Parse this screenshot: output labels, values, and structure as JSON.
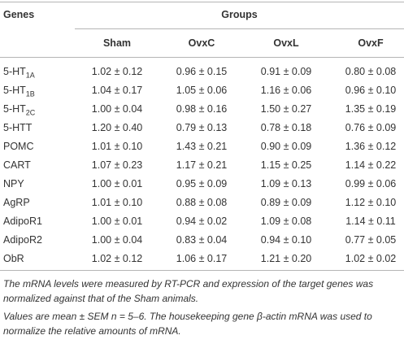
{
  "header": {
    "genes": "Genes",
    "groups": "Groups"
  },
  "columns": [
    "Sham",
    "OvxC",
    "OvxL",
    "OvxF"
  ],
  "rows": [
    {
      "gene": "5-HT",
      "gene_sub": "1A",
      "values": [
        "1.02 ± 0.12",
        "0.96 ± 0.15",
        "0.91 ± 0.09",
        "0.80 ± 0.08"
      ]
    },
    {
      "gene": "5-HT",
      "gene_sub": "1B",
      "values": [
        "1.04 ± 0.17",
        "1.05 ± 0.06",
        "1.16 ± 0.06",
        "0.96 ± 0.10"
      ]
    },
    {
      "gene": "5-HT",
      "gene_sub": "2C",
      "values": [
        "1.00 ± 0.04",
        "0.98 ± 0.16",
        "1.50 ± 0.27",
        "1.35 ± 0.19"
      ]
    },
    {
      "gene": "5-HTT",
      "values": [
        "1.20 ± 0.40",
        "0.79 ± 0.13",
        "0.78 ± 0.18",
        "0.76 ± 0.09"
      ]
    },
    {
      "gene": "POMC",
      "values": [
        "1.01 ± 0.10",
        "1.43 ± 0.21",
        "0.90 ± 0.09",
        "1.36 ± 0.12"
      ]
    },
    {
      "gene": "CART",
      "values": [
        "1.07 ± 0.23",
        "1.17 ± 0.21",
        "1.15 ± 0.25",
        "1.14 ± 0.22"
      ]
    },
    {
      "gene": "NPY",
      "values": [
        "1.00 ± 0.01",
        "0.95 ± 0.09",
        "1.09 ± 0.13",
        "0.99 ± 0.06"
      ]
    },
    {
      "gene": "AgRP",
      "values": [
        "1.01 ± 0.10",
        "0.88 ± 0.08",
        "0.89 ± 0.09",
        "1.12 ± 0.10"
      ]
    },
    {
      "gene": "AdipoR1",
      "values": [
        "1.00 ± 0.01",
        "0.94 ± 0.02",
        "1.09 ± 0.08",
        "1.14 ± 0.11"
      ]
    },
    {
      "gene": "AdipoR2",
      "values": [
        "1.00 ± 0.04",
        "0.83 ± 0.04",
        "0.94 ± 0.10",
        "0.77 ± 0.05"
      ]
    },
    {
      "gene": "ObR",
      "values": [
        "1.02 ± 0.12",
        "1.06 ± 0.17",
        "1.21 ± 0.20",
        "1.02 ± 0.02"
      ]
    }
  ],
  "footnotes": [
    "The mRNA levels were measured by RT-PCR and expression of the target genes was normalized against that of the Sham animals.",
    "Values are mean ± SEM n = 5–6. The housekeeping gene β-actin mRNA was used to normalize the relative amounts of mRNA."
  ]
}
